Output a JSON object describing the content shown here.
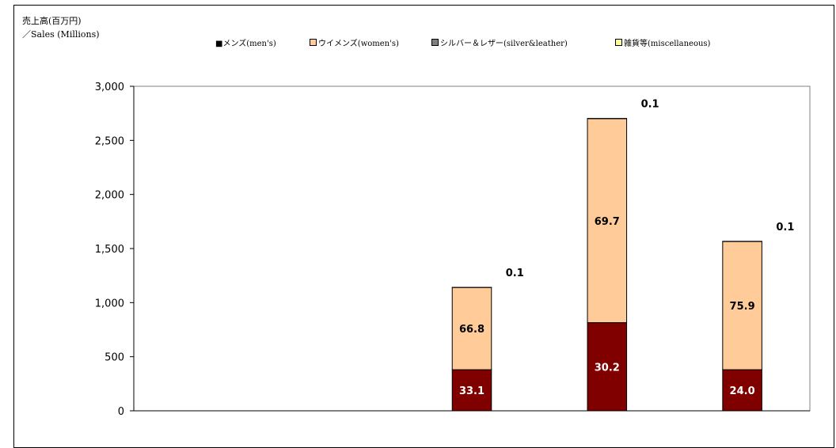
{
  "unit_label": {
    "line1": "売上高(百万円)",
    "line2": "／Sales (Millions)"
  },
  "legend": [
    {
      "label": "■メンズ(men's)",
      "color": "#800000"
    },
    {
      "label": "ウイメンズ(women's)",
      "color": "#FFCC99"
    },
    {
      "label": "シルバー＆レザー(silver&leather)",
      "color": "#808080"
    },
    {
      "label": "雑貨等(miscellaneous)",
      "color": "#FFFF99"
    }
  ],
  "chart_data": {
    "type": "bar",
    "stacked": true,
    "categories": [
      "",
      "",
      "",
      "",
      ""
    ],
    "series": [
      {
        "name": "メンズ(men's)",
        "color": "#800000",
        "values": [
          null,
          null,
          380,
          815,
          380
        ],
        "labels": [
          "",
          "",
          "33.1",
          "30.2",
          "24.0"
        ]
      },
      {
        "name": "ウイメンズ(women's)",
        "color": "#FFCC99",
        "values": [
          null,
          null,
          760,
          1885,
          1185
        ],
        "labels": [
          "",
          "",
          "66.8",
          "69.7",
          "75.9"
        ]
      },
      {
        "name": "シルバー＆レザー(silver&leather)",
        "color": "#808080",
        "values": [
          null,
          null,
          0,
          0,
          0
        ],
        "labels": [
          "",
          "",
          "",
          "",
          ""
        ]
      },
      {
        "name": "雑貨等(miscellaneous)",
        "color": "#FFFF99",
        "values": [
          null,
          null,
          1,
          3,
          2
        ],
        "labels": [
          "",
          "",
          "0.1",
          "0.1",
          "0.1"
        ]
      }
    ],
    "ylim": [
      0,
      3000
    ],
    "yticks": [
      0,
      500,
      1000,
      1500,
      2000,
      2500,
      3000
    ],
    "ytick_labels": [
      "0",
      "500",
      "1,000",
      "1,500",
      "2,000",
      "2,500",
      "3,000"
    ],
    "grid": false,
    "legend_position": "top"
  }
}
